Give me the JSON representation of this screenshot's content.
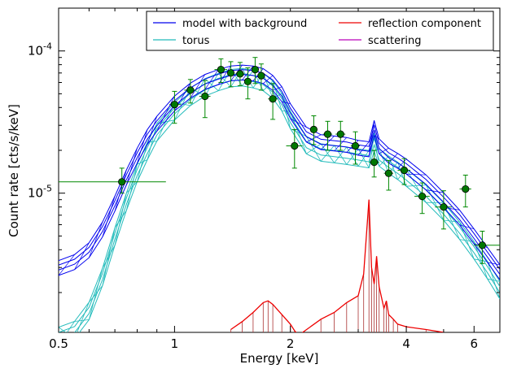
{
  "chart_data": {
    "type": "line",
    "xlabel": "Energy [keV]",
    "ylabel": "Count rate [cts/s/keV]",
    "xscale": "log",
    "yscale": "log",
    "xlim": [
      0.5,
      7.0
    ],
    "ylim": [
      1.05e-06,
      0.0002
    ],
    "grid": false,
    "legend_position": "top-right",
    "x_ticks": [
      {
        "value": 0.5,
        "label": "0.5"
      },
      {
        "value": 1,
        "label": "1"
      },
      {
        "value": 2,
        "label": "2"
      },
      {
        "value": 4,
        "label": "4"
      },
      {
        "value": 6,
        "label": "6"
      }
    ],
    "y_ticks": [
      {
        "value": 1e-05,
        "base": "10",
        "exp": "-5"
      },
      {
        "value": 0.0001,
        "base": "10",
        "exp": "-4"
      }
    ],
    "legend": [
      {
        "label": "model with background",
        "color": "#0000ee"
      },
      {
        "label": "reflection component",
        "color": "#ee0000"
      },
      {
        "label": "torus",
        "color": "#22bbbb"
      },
      {
        "label": "scattering",
        "color": "#bb00bb"
      }
    ],
    "series": [
      {
        "name": "model with background",
        "color": "#0000ee",
        "x": [
          0.5,
          0.55,
          0.6,
          0.65,
          0.7,
          0.75,
          0.8,
          0.85,
          0.9,
          1.0,
          1.1,
          1.2,
          1.3,
          1.4,
          1.5,
          1.6,
          1.7,
          1.8,
          1.9,
          2.0,
          2.2,
          2.4,
          2.6,
          2.8,
          3.0,
          3.2,
          3.3,
          3.4,
          3.6,
          3.8,
          4.0,
          4.5,
          5.0,
          5.5,
          6.0,
          6.5,
          7.0
        ],
        "y": [
          3e-06,
          3.3e-06,
          4e-06,
          5.6e-06,
          8.5e-06,
          1.3e-05,
          1.85e-05,
          2.5e-05,
          3.1e-05,
          4.3e-05,
          5.3e-05,
          6.1e-05,
          6.6e-05,
          7e-05,
          7.1e-05,
          7e-05,
          6.7e-05,
          6e-05,
          5e-05,
          3.8e-05,
          2.6e-05,
          2.3e-05,
          2.25e-05,
          2.2e-05,
          2.1e-05,
          2.05e-05,
          2.9e-05,
          2.15e-05,
          1.85e-05,
          1.7e-05,
          1.55e-05,
          1.2e-05,
          9e-06,
          6.8e-06,
          5e-06,
          3.7e-06,
          2.8e-06
        ]
      },
      {
        "name": "torus",
        "color": "#22bbbb",
        "x": [
          0.5,
          0.55,
          0.6,
          0.65,
          0.7,
          0.75,
          0.8,
          0.85,
          0.9,
          1.0,
          1.1,
          1.2,
          1.3,
          1.4,
          1.5,
          1.6,
          1.7,
          1.8,
          1.9,
          2.0,
          2.2,
          2.4,
          2.6,
          2.8,
          3.0,
          3.2,
          3.3,
          3.4,
          3.6,
          3.8,
          4.0,
          4.5,
          5.0,
          5.5,
          6.0,
          6.5,
          7.0
        ],
        "y": [
          1e-06,
          1.1e-06,
          1.5e-06,
          2.6e-06,
          5e-06,
          8.8e-06,
          1.4e-05,
          2e-05,
          2.7e-05,
          3.8e-05,
          4.8e-05,
          5.6e-05,
          6.1e-05,
          6.5e-05,
          6.6e-05,
          6.4e-05,
          6.1e-05,
          5.4e-05,
          4.4e-05,
          3.3e-05,
          2.2e-05,
          1.95e-05,
          1.9e-05,
          1.85e-05,
          1.8e-05,
          1.75e-05,
          2.3e-05,
          1.8e-05,
          1.6e-05,
          1.45e-05,
          1.3e-05,
          1e-05,
          7.5e-06,
          5.5e-06,
          4e-06,
          2.9e-06,
          2.1e-06
        ]
      },
      {
        "name": "reflection component",
        "color": "#ee0000",
        "x": [
          1.4,
          1.5,
          1.6,
          1.7,
          1.75,
          1.8,
          1.9,
          2.0,
          2.05,
          2.1,
          2.4,
          2.6,
          2.8,
          3.0,
          3.1,
          3.2,
          3.25,
          3.3,
          3.35,
          3.4,
          3.5,
          3.55,
          3.6,
          3.7,
          3.8,
          4.0,
          4.5,
          5.0
        ],
        "y": [
          1.1e-06,
          1.25e-06,
          1.45e-06,
          1.7e-06,
          1.75e-06,
          1.65e-06,
          1.4e-06,
          1.2e-06,
          1.08e-06,
          1e-06,
          1.3e-06,
          1.45e-06,
          1.7e-06,
          1.9e-06,
          2.7e-06,
          9e-06,
          3e-06,
          2.3e-06,
          3.6e-06,
          2.2e-06,
          1.55e-06,
          1.75e-06,
          1.4e-06,
          1.3e-06,
          1.2e-06,
          1.15e-06,
          1.1e-06,
          1.05e-06
        ]
      }
    ],
    "data_points": {
      "name": "data",
      "color": "#008800",
      "points": [
        {
          "x": 0.73,
          "y": 1.2e-05,
          "xlo": 0.5,
          "xhi": 0.95,
          "ylo": 1e-05,
          "yhi": 1.5e-05
        },
        {
          "x": 1.0,
          "y": 4.2e-05,
          "xlo": 0.97,
          "xhi": 1.04,
          "ylo": 3.1e-05,
          "yhi": 5.2e-05
        },
        {
          "x": 1.1,
          "y": 5.3e-05,
          "xlo": 1.06,
          "xhi": 1.14,
          "ylo": 4.3e-05,
          "yhi": 6.3e-05
        },
        {
          "x": 1.2,
          "y": 4.8e-05,
          "xlo": 1.16,
          "xhi": 1.24,
          "ylo": 3.4e-05,
          "yhi": 6.2e-05
        },
        {
          "x": 1.32,
          "y": 7.4e-05,
          "xlo": 1.27,
          "xhi": 1.37,
          "ylo": 6e-05,
          "yhi": 8.8e-05
        },
        {
          "x": 1.4,
          "y": 7e-05,
          "xlo": 1.37,
          "xhi": 1.43,
          "ylo": 5.6e-05,
          "yhi": 8.4e-05
        },
        {
          "x": 1.48,
          "y": 6.9e-05,
          "xlo": 1.44,
          "xhi": 1.52,
          "ylo": 5.7e-05,
          "yhi": 8.3e-05
        },
        {
          "x": 1.55,
          "y": 6.1e-05,
          "xlo": 1.52,
          "xhi": 1.58,
          "ylo": 4.6e-05,
          "yhi": 7.6e-05
        },
        {
          "x": 1.62,
          "y": 7.4e-05,
          "xlo": 1.59,
          "xhi": 1.65,
          "ylo": 5.9e-05,
          "yhi": 9e-05
        },
        {
          "x": 1.68,
          "y": 6.7e-05,
          "xlo": 1.65,
          "xhi": 1.71,
          "ylo": 5.3e-05,
          "yhi": 8.1e-05
        },
        {
          "x": 1.8,
          "y": 4.6e-05,
          "xlo": 1.75,
          "xhi": 1.85,
          "ylo": 3.3e-05,
          "yhi": 5.9e-05
        },
        {
          "x": 2.05,
          "y": 2.15e-05,
          "xlo": 1.95,
          "xhi": 2.15,
          "ylo": 1.5e-05,
          "yhi": 2.8e-05
        },
        {
          "x": 2.3,
          "y": 2.8e-05,
          "xlo": 2.25,
          "xhi": 2.35,
          "ylo": 2.2e-05,
          "yhi": 3.5e-05
        },
        {
          "x": 2.5,
          "y": 2.6e-05,
          "xlo": 2.43,
          "xhi": 2.57,
          "ylo": 2e-05,
          "yhi": 3.2e-05
        },
        {
          "x": 2.7,
          "y": 2.6e-05,
          "xlo": 2.62,
          "xhi": 2.78,
          "ylo": 2e-05,
          "yhi": 3.2e-05
        },
        {
          "x": 2.95,
          "y": 2.15e-05,
          "xlo": 2.87,
          "xhi": 3.03,
          "ylo": 1.6e-05,
          "yhi": 2.7e-05
        },
        {
          "x": 3.3,
          "y": 1.65e-05,
          "xlo": 3.2,
          "xhi": 3.4,
          "ylo": 1.3e-05,
          "yhi": 2e-05
        },
        {
          "x": 3.6,
          "y": 1.38e-05,
          "xlo": 3.5,
          "xhi": 3.7,
          "ylo": 1.05e-05,
          "yhi": 1.7e-05
        },
        {
          "x": 3.95,
          "y": 1.45e-05,
          "xlo": 3.8,
          "xhi": 4.1,
          "ylo": 1.15e-05,
          "yhi": 1.75e-05
        },
        {
          "x": 4.4,
          "y": 9.5e-06,
          "xlo": 4.2,
          "xhi": 4.6,
          "ylo": 7.2e-06,
          "yhi": 1.18e-05
        },
        {
          "x": 5.0,
          "y": 8e-06,
          "xlo": 4.75,
          "xhi": 5.25,
          "ylo": 5.6e-06,
          "yhi": 1.04e-05
        },
        {
          "x": 5.7,
          "y": 1.07e-05,
          "xlo": 5.5,
          "xhi": 5.9,
          "ylo": 8e-06,
          "yhi": 1.34e-05
        },
        {
          "x": 6.3,
          "y": 4.3e-06,
          "xlo": 6.0,
          "xhi": 7.0,
          "ylo": 3.2e-06,
          "yhi": 5.4e-06
        }
      ]
    }
  }
}
